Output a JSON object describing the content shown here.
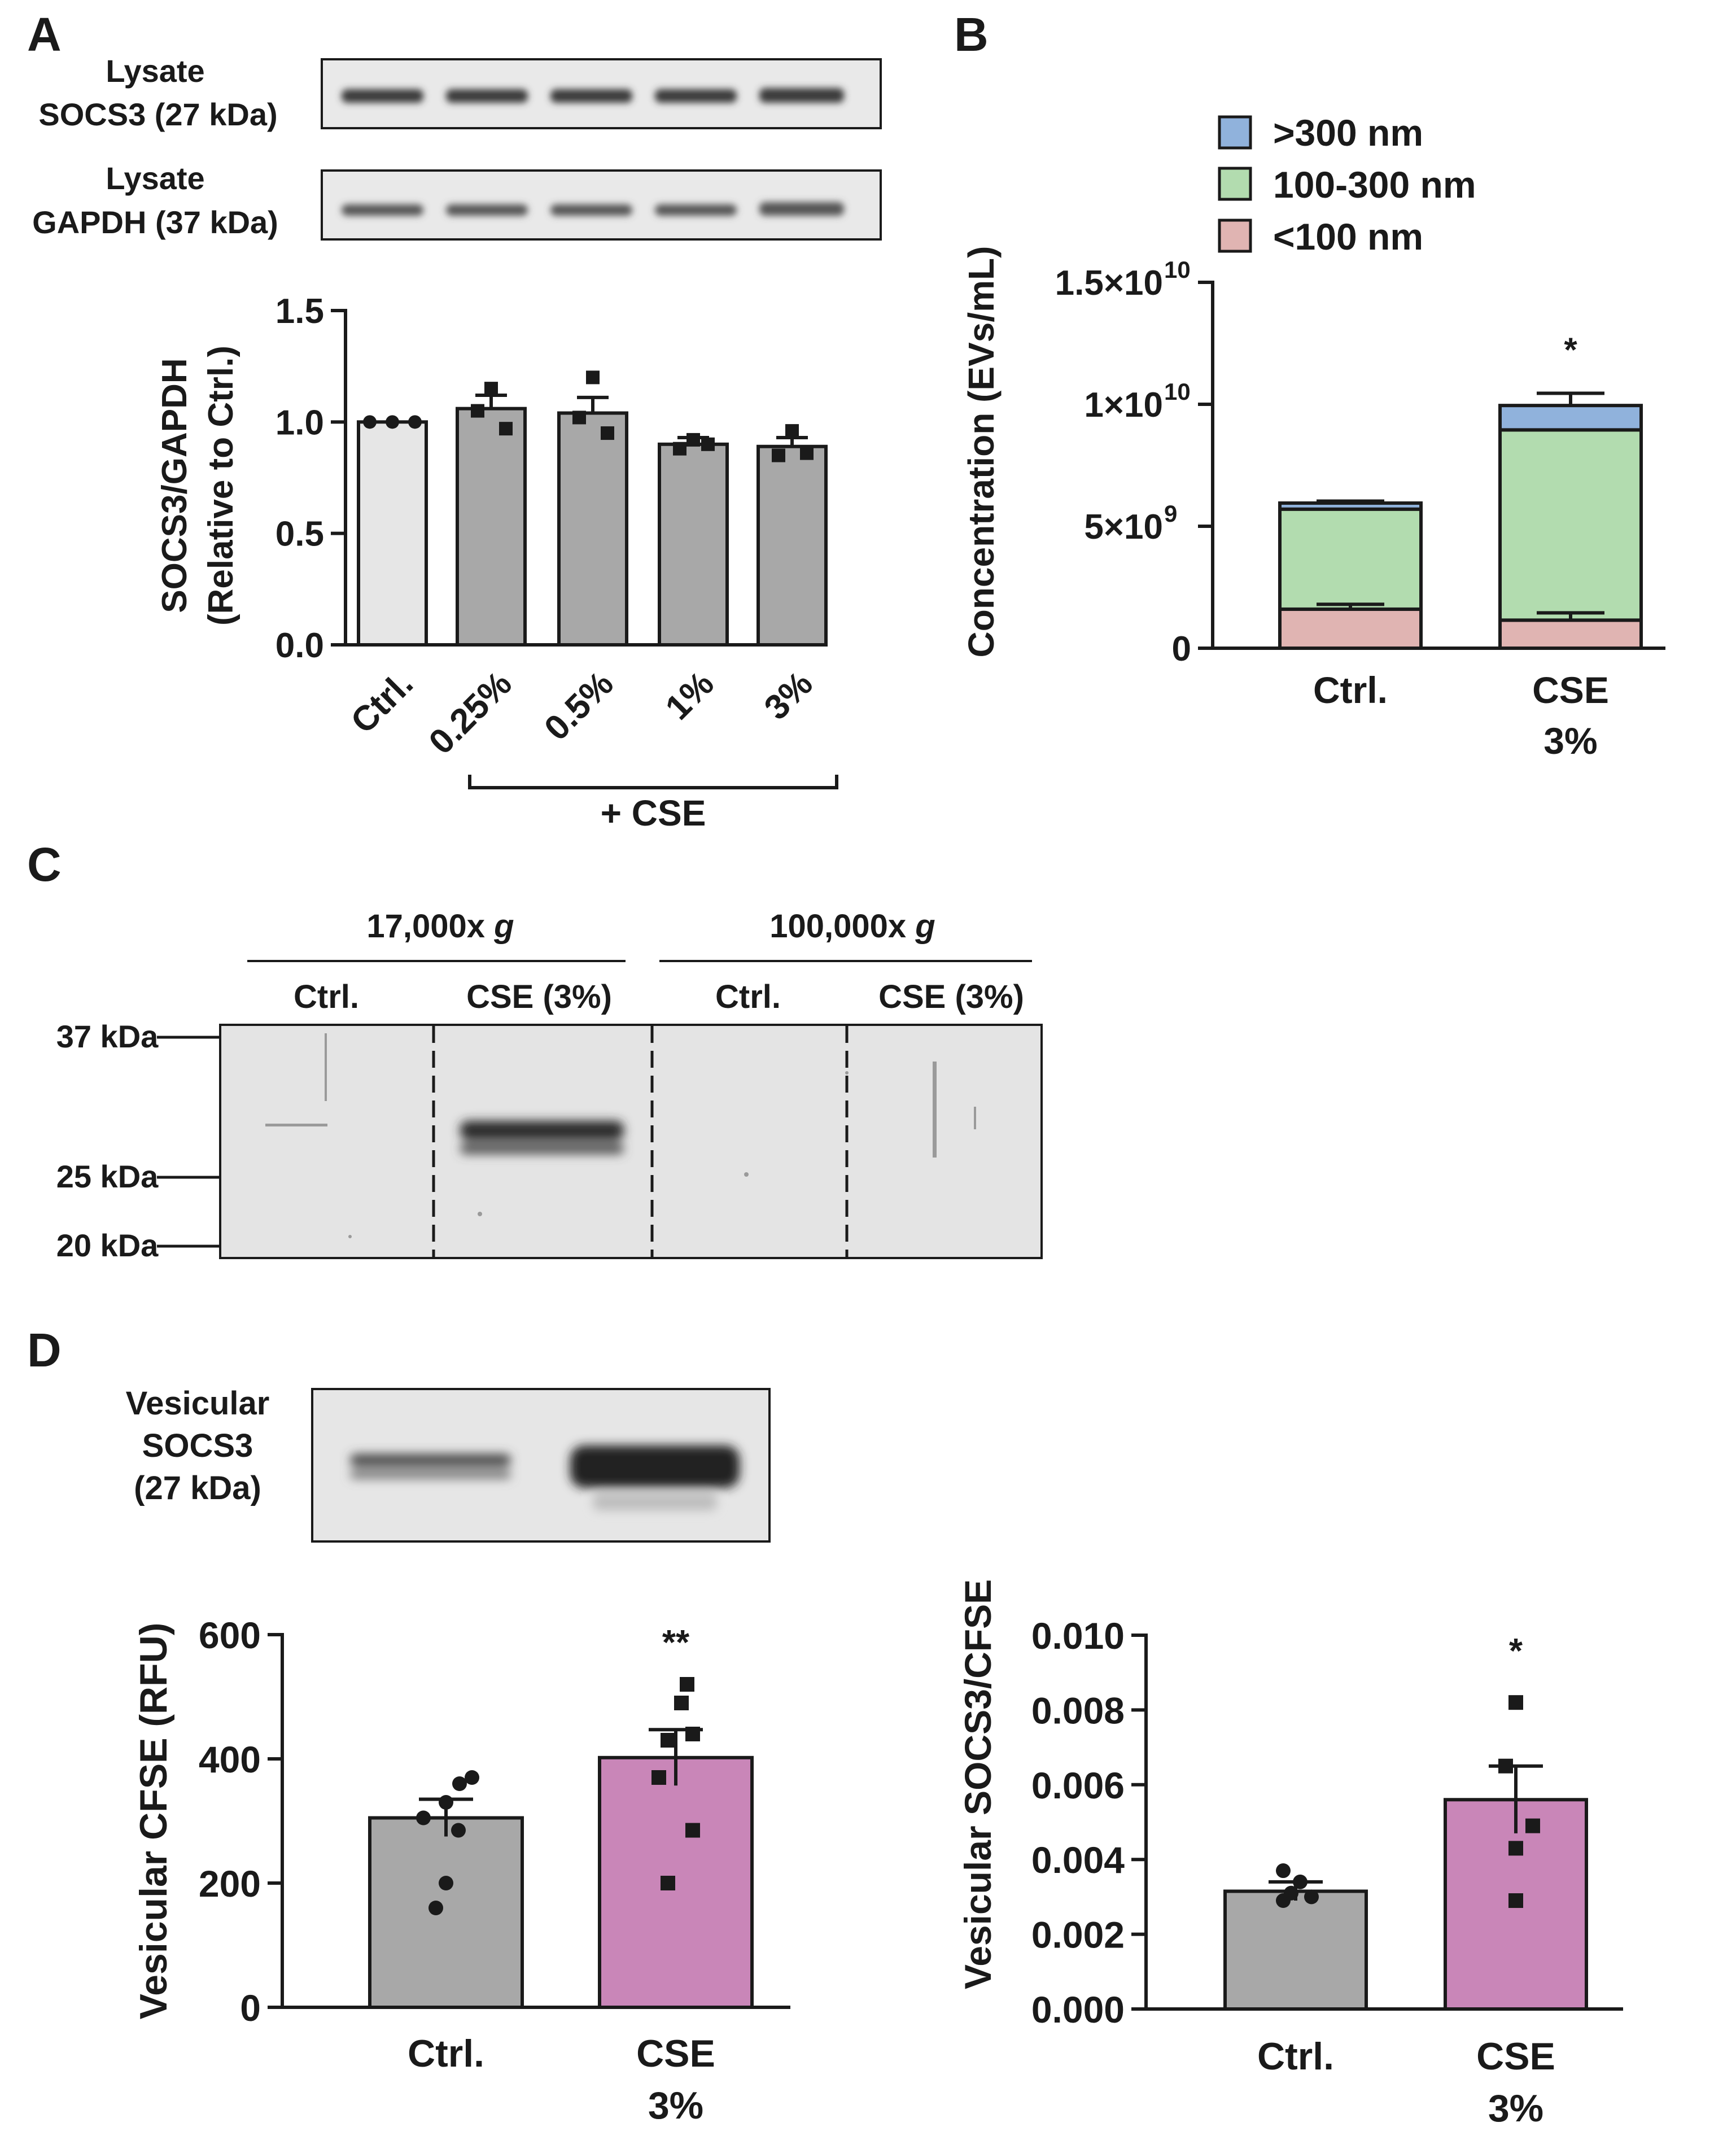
{
  "colors": {
    "ink": "#1a1a1a",
    "blot_bg": "#e9e9e9",
    "blot_band": "#3a3a3a",
    "bar_ctrl_light": "#e6e6e6",
    "bar_gray": "#a8a8a8",
    "bar_pink": "#c986b8",
    "seg_small": "#e0b4b2",
    "seg_mid": "#b2dcaf",
    "seg_large": "#90b2dc"
  },
  "panels": {
    "a": {
      "letter": "A",
      "blot1_label_line1": "Lysate",
      "blot1_label_line2": "SOCS3 (27 kDa)",
      "blot2_label_line1": "Lysate",
      "blot2_label_line2": "GAPDH (37 kDa)",
      "group_label": "+ CSE"
    },
    "b": {
      "letter": "B",
      "legend": [
        ">300 nm",
        "100-300 nm",
        "<100 nm"
      ],
      "ylabel": "Concentration (EVs/mL)",
      "ytick_labels": [
        "0",
        "5×10",
        "1×10",
        "1.5×10"
      ],
      "ytick_exponents": [
        "",
        "9",
        "10",
        "10"
      ]
    },
    "c": {
      "letter": "C",
      "group1_label": "17,000x",
      "group2_label": "100,000x",
      "g_unit": "g",
      "lanes": [
        "Ctrl.",
        "CSE (3%)",
        "Ctrl.",
        "CSE (3%)"
      ],
      "markers": [
        "37 kDa",
        "25 kDa",
        "20 kDa"
      ]
    },
    "d": {
      "letter": "D",
      "blot_label_line1": "Vesicular",
      "blot_label_line2": "SOCS3",
      "blot_label_line3": "(27 kDa)"
    }
  },
  "chart_data": [
    {
      "id": "A",
      "type": "bar",
      "categories": [
        "Ctrl.",
        "0.25%",
        "0.5%",
        "1%",
        "3%"
      ],
      "values": [
        1.0,
        1.06,
        1.04,
        0.9,
        0.89
      ],
      "errors": [
        0.0,
        0.06,
        0.07,
        0.03,
        0.04
      ],
      "points": [
        [
          1.0,
          1.0,
          1.0
        ],
        [
          1.15,
          1.05,
          0.97
        ],
        [
          1.2,
          1.02,
          0.95
        ],
        [
          0.92,
          0.88,
          0.9
        ],
        [
          0.96,
          0.85,
          0.86
        ]
      ],
      "title": "",
      "xlabel": "",
      "ylabel": "SOCS3/GAPDH (Relative to Ctrl.)",
      "ylabel_line1": "SOCS3/GAPDH",
      "ylabel_line2": "(Relative to Ctrl.)",
      "ylim": [
        0,
        1.5
      ],
      "yticks": [
        0,
        0.5,
        1.0,
        1.5
      ],
      "ytick_labels": [
        "0.0",
        "0.5",
        "1.0",
        "1.5"
      ]
    },
    {
      "id": "B",
      "type": "bar",
      "stacked": true,
      "categories": [
        "Ctrl.",
        "CSE 3%"
      ],
      "category_lines": [
        [
          "Ctrl."
        ],
        [
          "CSE",
          "3%"
        ]
      ],
      "series": [
        {
          "name": "<100 nm",
          "values": [
            1600000000,
            1150000000
          ],
          "errors": [
            200000000,
            300000000
          ]
        },
        {
          "name": "100-300 nm",
          "values": [
            4100000000,
            7800000000
          ],
          "errors": [
            0,
            0
          ]
        },
        {
          "name": ">300 nm",
          "values": [
            250000000,
            1000000000
          ],
          "errors": [
            80000000,
            500000000
          ]
        }
      ],
      "ylabel": "Concentration (EVs/mL)",
      "ylim": [
        0,
        15000000000
      ],
      "yticks": [
        0,
        5000000000,
        10000000000,
        15000000000
      ],
      "annotations": [
        {
          "category": "CSE 3%",
          "text": "*"
        }
      ],
      "legend_position": "top"
    },
    {
      "id": "D-left",
      "type": "bar",
      "categories": [
        "Ctrl.",
        "CSE 3%"
      ],
      "category_lines": [
        [
          "Ctrl."
        ],
        [
          "CSE",
          "3%"
        ]
      ],
      "values": [
        305,
        402
      ],
      "errors": [
        30,
        45
      ],
      "points": [
        [
          160,
          200,
          285,
          305,
          330,
          360,
          370
        ],
        [
          200,
          285,
          370,
          430,
          440,
          490,
          520
        ]
      ],
      "ylabel": "Vesicular CFSE (RFU)",
      "ylim": [
        0,
        600
      ],
      "yticks": [
        0,
        200,
        400,
        600
      ],
      "ytick_labels": [
        "0",
        "200",
        "400",
        "600"
      ],
      "annotations": [
        {
          "category": "CSE 3%",
          "text": "**"
        }
      ]
    },
    {
      "id": "D-right",
      "type": "bar",
      "categories": [
        "Ctrl.",
        "CSE 3%"
      ],
      "category_lines": [
        [
          "Ctrl."
        ],
        [
          "CSE",
          "3%"
        ]
      ],
      "values": [
        0.00315,
        0.0056
      ],
      "errors": [
        0.00025,
        0.0009
      ],
      "points": [
        [
          0.0029,
          0.003,
          0.0031,
          0.0034,
          0.0037
        ],
        [
          0.0029,
          0.0043,
          0.0049,
          0.0065,
          0.0082
        ]
      ],
      "ylabel": "Vesicular SOCS3/CFSE",
      "ylim": [
        0,
        0.01
      ],
      "yticks": [
        0,
        0.002,
        0.004,
        0.006,
        0.008,
        0.01
      ],
      "ytick_labels": [
        "0.000",
        "0.002",
        "0.004",
        "0.006",
        "0.008",
        "0.010"
      ],
      "annotations": [
        {
          "category": "CSE 3%",
          "text": "*"
        }
      ]
    }
  ]
}
